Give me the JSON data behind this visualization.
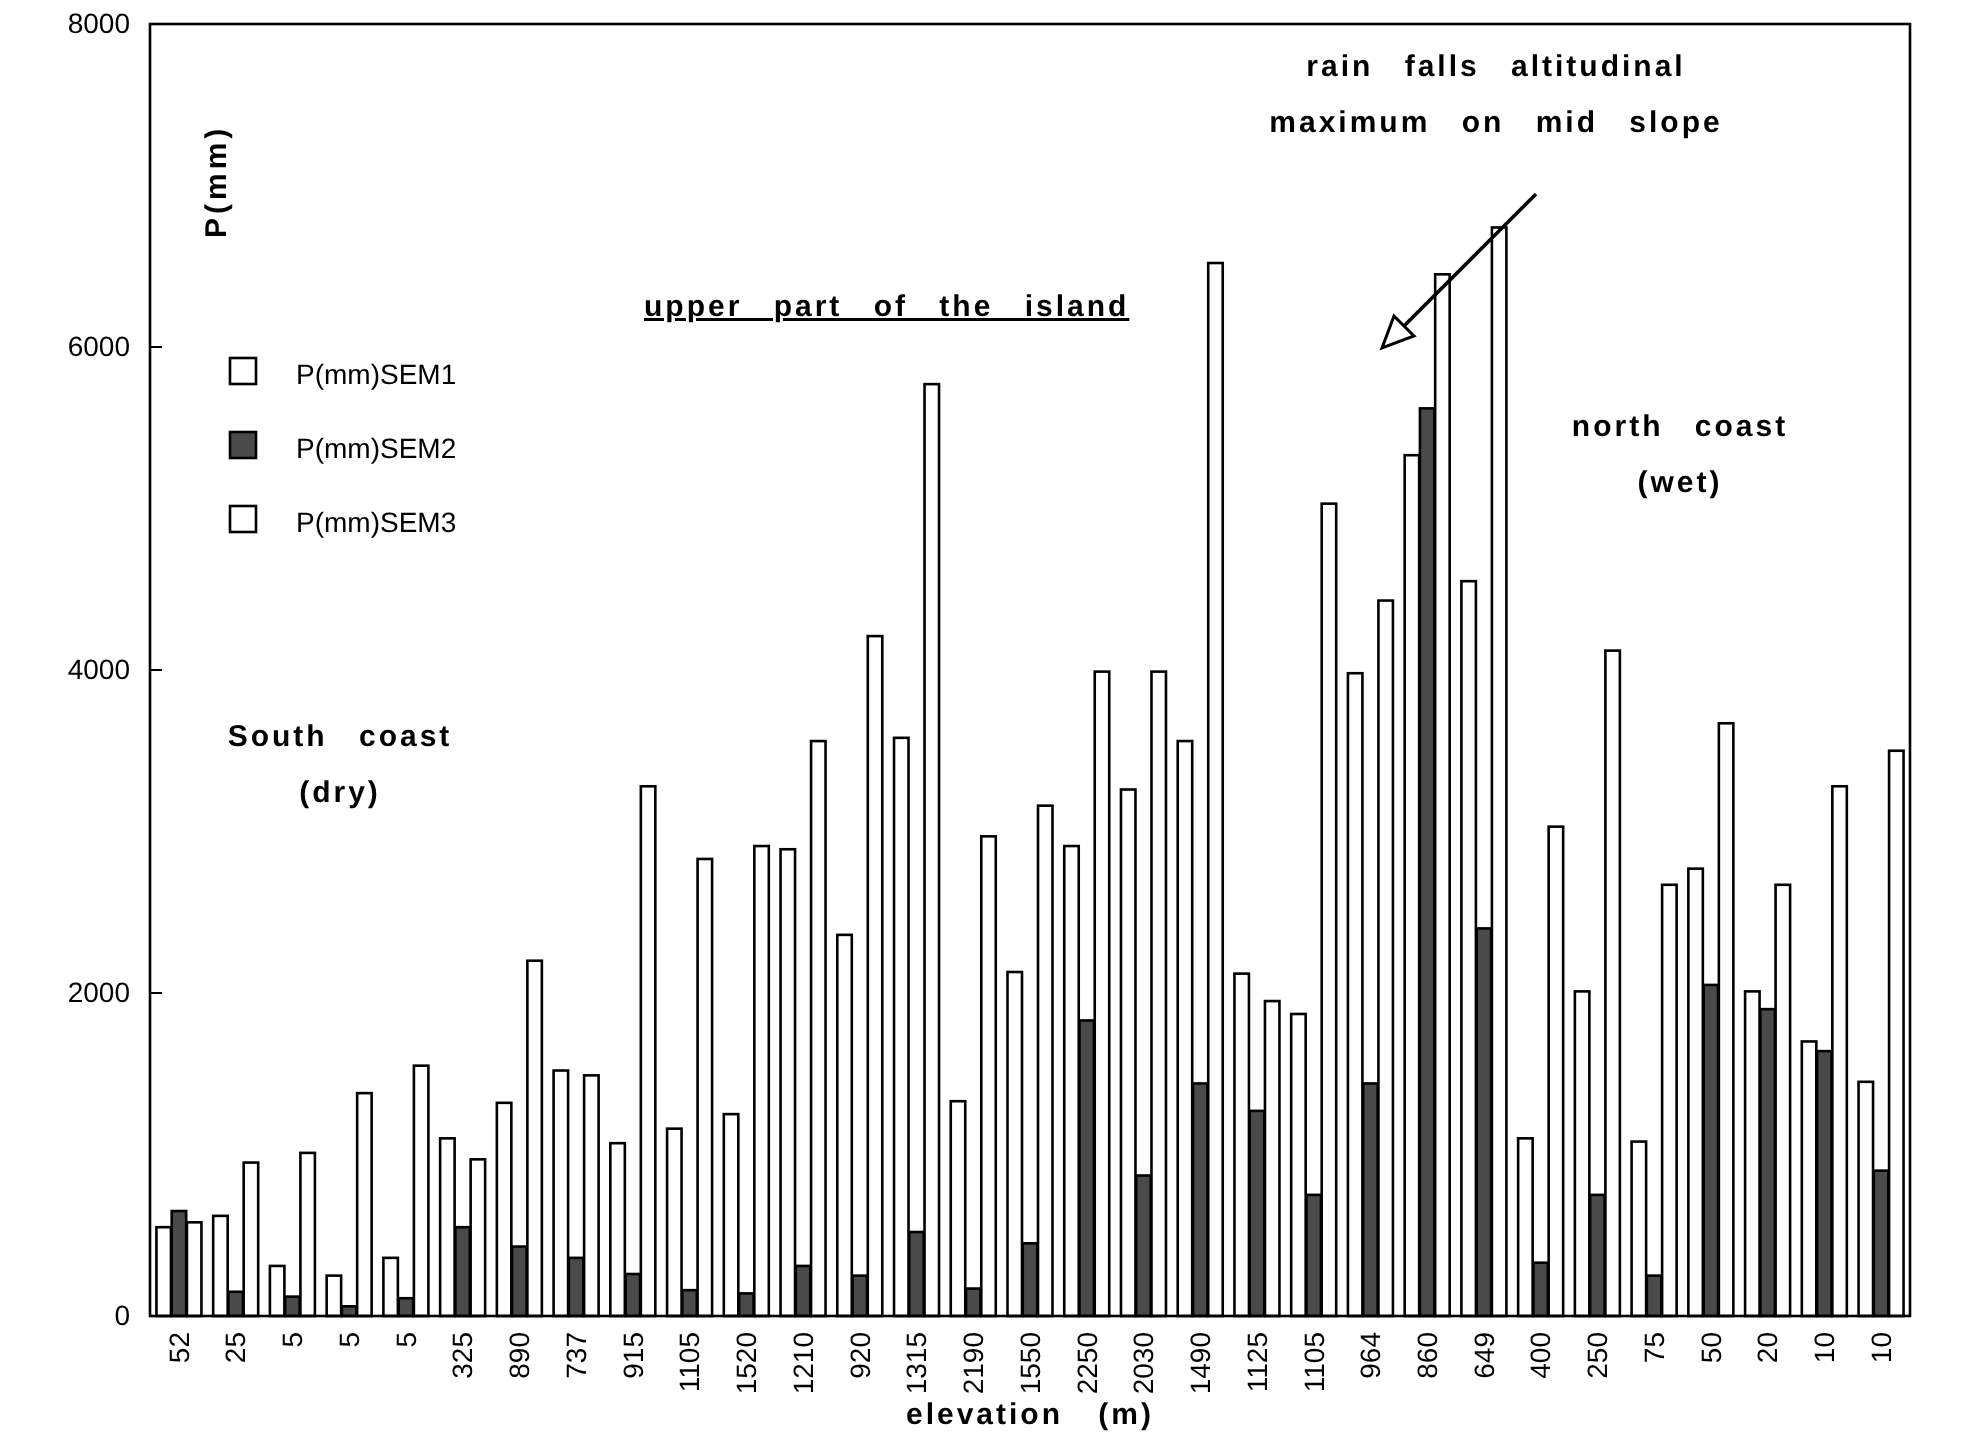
{
  "chart_data": {
    "type": "bar",
    "xlabel": "elevation (m)",
    "ylabel": "P(mm)",
    "categories": [
      "52",
      "25",
      "5",
      "5",
      "5",
      "325",
      "890",
      "737",
      "915",
      "1105",
      "1520",
      "1210",
      "920",
      "1315",
      "2190",
      "1550",
      "2250",
      "2030",
      "1490",
      "1125",
      "1105",
      "964",
      "860",
      "649",
      "400",
      "250",
      "75",
      "50",
      "20",
      "10",
      "10"
    ],
    "series": [
      {
        "name": "P(mm)SEM1",
        "color": "#ffffff",
        "values": [
          550,
          620,
          310,
          250,
          360,
          1100,
          1320,
          1520,
          1070,
          1160,
          1250,
          2890,
          2360,
          3580,
          1330,
          2130,
          2910,
          3260,
          3560,
          2120,
          1870,
          3980,
          5330,
          4550,
          1100,
          2010,
          1080,
          2770,
          2010,
          1700,
          1450
        ]
      },
      {
        "name": "P(mm)SEM2",
        "color": "#4a4a4a",
        "values": [
          650,
          150,
          120,
          60,
          110,
          550,
          430,
          360,
          260,
          160,
          140,
          310,
          250,
          520,
          170,
          450,
          1830,
          870,
          1440,
          1270,
          750,
          1440,
          5620,
          2400,
          330,
          750,
          250,
          2050,
          1900,
          1640,
          900
        ]
      },
      {
        "name": "P(mm)SEM3",
        "color": "#ffffff",
        "values": [
          580,
          950,
          1010,
          1380,
          1550,
          970,
          2200,
          1490,
          3280,
          2830,
          2910,
          3560,
          4210,
          5770,
          2970,
          3160,
          3990,
          3990,
          6520,
          1950,
          5030,
          4430,
          6450,
          6740,
          3030,
          4120,
          2670,
          3670,
          2670,
          3280,
          3500
        ]
      }
    ],
    "ylim": [
      0,
      8000
    ],
    "yticks": [
      0,
      2000,
      4000,
      6000,
      8000
    ],
    "legend": "top left",
    "annotations": [
      "upper part of the island",
      "rain falls altitudinal\nmaximum on mid slope",
      "north coast\n(wet)",
      "South coast\n(dry)"
    ]
  }
}
